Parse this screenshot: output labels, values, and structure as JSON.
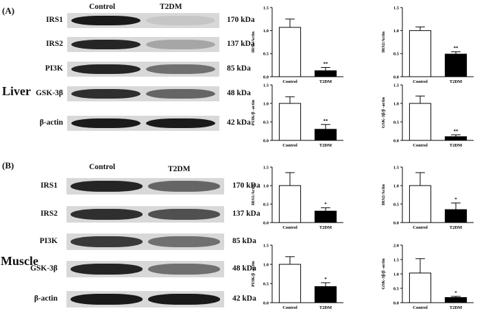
{
  "panels": [
    {
      "label": "(A)",
      "tissue": "Liver",
      "columns": [
        "Control",
        "T2DM"
      ],
      "bands": [
        {
          "name": "IRS1",
          "kda": "170 kDa",
          "control": 0.95,
          "t2dm": 0.15
        },
        {
          "name": "IRS2",
          "kda": "137 kDa",
          "control": 0.9,
          "t2dm": 0.3
        },
        {
          "name": "PI3K",
          "kda": "85 kDa",
          "control": 0.9,
          "t2dm": 0.55
        },
        {
          "name": "GSK-3β",
          "kda": "48 kDa",
          "control": 0.85,
          "t2dm": 0.6
        },
        {
          "name": "β-actin",
          "kda": "42 kDa",
          "control": 0.95,
          "t2dm": 0.95
        }
      ]
    },
    {
      "label": "(B)",
      "tissue": "Muscle",
      "columns": [
        "Control",
        "T2DM"
      ],
      "bands": [
        {
          "name": "IRS1",
          "kda": "170 kDa",
          "control": 0.9,
          "t2dm": 0.6
        },
        {
          "name": "IRS2",
          "kda": "137 kDa",
          "control": 0.85,
          "t2dm": 0.7
        },
        {
          "name": "PI3K",
          "kda": "85 kDa",
          "control": 0.8,
          "t2dm": 0.55
        },
        {
          "name": "GSK-3β",
          "kda": "48 kDa",
          "control": 0.9,
          "t2dm": 0.55
        },
        {
          "name": "β-actin",
          "kda": "42 kDa",
          "control": 0.95,
          "t2dm": 0.95
        }
      ]
    }
  ],
  "chart_data": [
    {
      "type": "bar",
      "ylabel": "IRS1/Actin",
      "categories": [
        "Control",
        "T2DM"
      ],
      "values": [
        1.07,
        0.13
      ],
      "errors": [
        0.18,
        0.07
      ],
      "ylim": [
        0,
        1.5
      ],
      "yticks": [
        "0.0",
        "0.5",
        "1.0",
        "1.5"
      ],
      "significance": "**",
      "colors": [
        "#ffffff",
        "#000000"
      ]
    },
    {
      "type": "bar",
      "ylabel": "IRS2/Actin",
      "categories": [
        "Control",
        "T2DM"
      ],
      "values": [
        1.0,
        0.49
      ],
      "errors": [
        0.08,
        0.05
      ],
      "ylim": [
        0,
        1.5
      ],
      "yticks": [
        "0.0",
        "0.5",
        "1.0",
        "1.5"
      ],
      "significance": "**",
      "colors": [
        "#ffffff",
        "#000000"
      ]
    },
    {
      "type": "bar",
      "ylabel": "PI3K/β -actin",
      "categories": [
        "Control",
        "T2DM"
      ],
      "values": [
        1.0,
        0.3
      ],
      "errors": [
        0.18,
        0.13
      ],
      "ylim": [
        0,
        1.5
      ],
      "yticks": [
        "0.0",
        "0.5",
        "1.0",
        "1.5"
      ],
      "significance": "**",
      "colors": [
        "#ffffff",
        "#000000"
      ]
    },
    {
      "type": "bar",
      "ylabel": "GSK-3β/β -actin",
      "categories": [
        "Control",
        "T2DM"
      ],
      "values": [
        1.0,
        0.1
      ],
      "errors": [
        0.2,
        0.05
      ],
      "ylim": [
        0,
        1.5
      ],
      "yticks": [
        "0.0",
        "0.5",
        "1.0",
        "1.5"
      ],
      "significance": "**",
      "colors": [
        "#ffffff",
        "#000000"
      ]
    },
    {
      "type": "bar",
      "ylabel": "IRS1/Actin",
      "categories": [
        "Control",
        "T2DM"
      ],
      "values": [
        1.0,
        0.31
      ],
      "errors": [
        0.35,
        0.09
      ],
      "ylim": [
        0,
        1.5
      ],
      "yticks": [
        "0.0",
        "0.5",
        "1.0",
        "1.5"
      ],
      "significance": "*",
      "colors": [
        "#ffffff",
        "#000000"
      ]
    },
    {
      "type": "bar",
      "ylabel": "IRS2/Actin",
      "categories": [
        "Control",
        "T2DM"
      ],
      "values": [
        1.0,
        0.35
      ],
      "errors": [
        0.35,
        0.18
      ],
      "ylim": [
        0,
        1.5
      ],
      "yticks": [
        "0.0",
        "0.5",
        "1.0",
        "1.5"
      ],
      "significance": "*",
      "colors": [
        "#ffffff",
        "#000000"
      ]
    },
    {
      "type": "bar",
      "ylabel": "PI3K/β -actin",
      "categories": [
        "Control",
        "T2DM"
      ],
      "values": [
        1.0,
        0.42
      ],
      "errors": [
        0.2,
        0.1
      ],
      "ylim": [
        0,
        1.5
      ],
      "yticks": [
        "0.0",
        "0.5",
        "1.0",
        "1.5"
      ],
      "significance": "*",
      "colors": [
        "#ffffff",
        "#000000"
      ]
    },
    {
      "type": "bar",
      "ylabel": "GSK-3β/β -actin",
      "categories": [
        "Control",
        "T2DM"
      ],
      "values": [
        1.03,
        0.18
      ],
      "errors": [
        0.5,
        0.04
      ],
      "ylim": [
        0,
        2.0
      ],
      "yticks": [
        "0.0",
        "0.5",
        "1.0",
        "1.5",
        "2.0"
      ],
      "significance": "*",
      "colors": [
        "#ffffff",
        "#000000"
      ]
    }
  ]
}
